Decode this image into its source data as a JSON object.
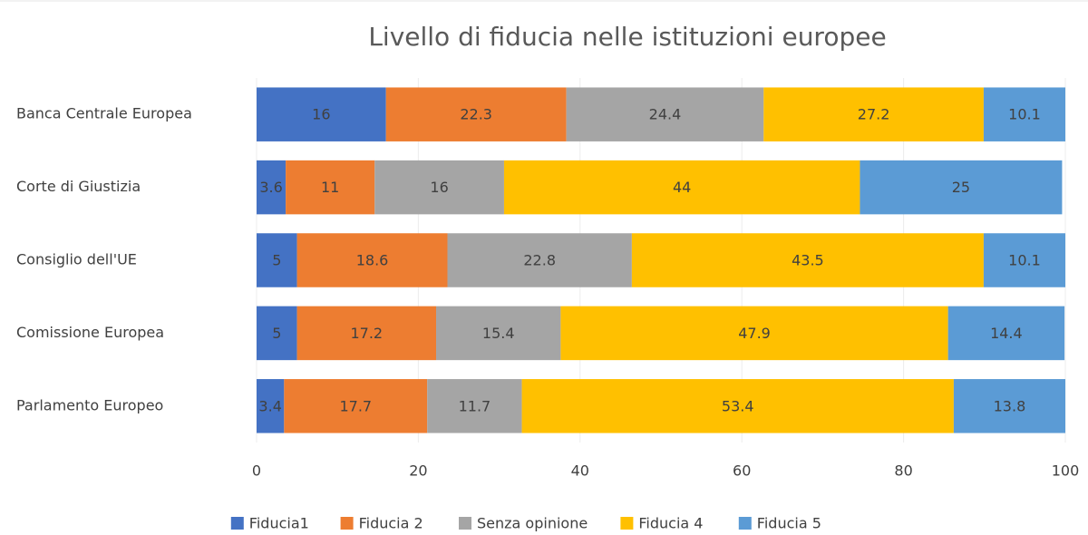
{
  "chart_data": {
    "type": "stacked-barh",
    "title": "Livello di fiducia nelle istituzioni europee",
    "categories": [
      "Banca Centrale Europea",
      "Corte di Giustizia",
      "Consiglio dell'UE",
      "Comissione Europea",
      "Parlamento Europeo"
    ],
    "series": [
      {
        "name": "Fiducia1",
        "color": "#4472c4",
        "values": [
          16,
          3.6,
          5,
          5,
          3.4
        ]
      },
      {
        "name": "Fiducia 2",
        "color": "#ed7d31",
        "values": [
          22.3,
          11,
          18.6,
          17.2,
          17.7
        ]
      },
      {
        "name": "Senza opinione",
        "color": "#a5a5a5",
        "values": [
          24.4,
          16,
          22.8,
          15.4,
          11.7
        ]
      },
      {
        "name": "Fiducia 4",
        "color": "#ffc000",
        "values": [
          27.2,
          44,
          43.5,
          47.9,
          53.4
        ]
      },
      {
        "name": "Fiducia 5",
        "color": "#5b9bd5",
        "values": [
          10.1,
          25,
          10.1,
          14.4,
          13.8
        ]
      }
    ],
    "xlim": [
      0,
      100
    ],
    "xticks": [
      0,
      20,
      40,
      60,
      80,
      100
    ],
    "grid": true,
    "legend": "bottom"
  }
}
